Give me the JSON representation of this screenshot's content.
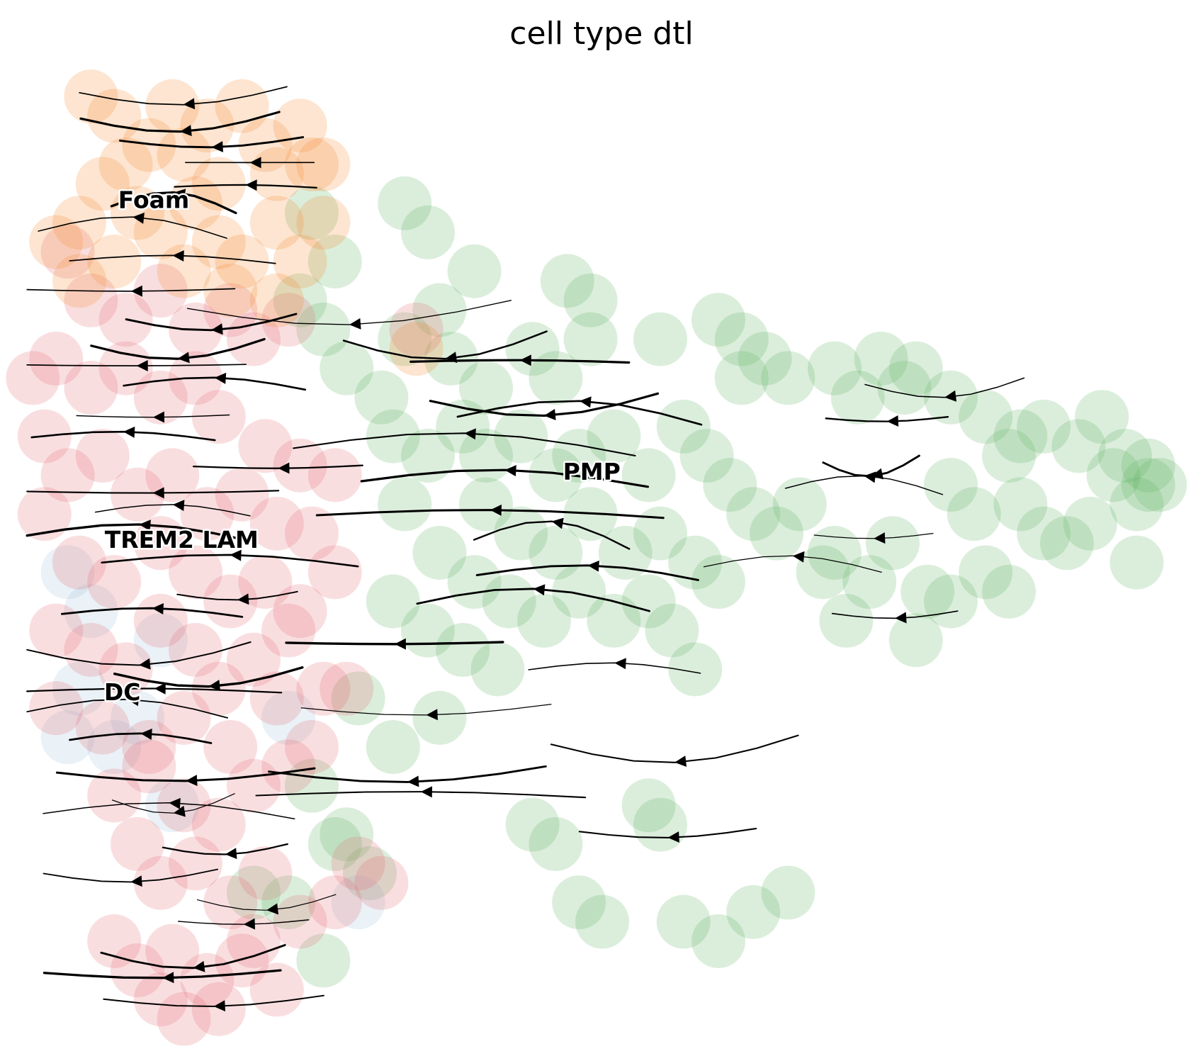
{
  "chart_data": {
    "type": "scatter",
    "title": "cell type dtl",
    "xlabel": "",
    "ylabel": "",
    "grid": false,
    "axes_visible": false,
    "legend": "on data",
    "overlay": "velocity streamlines with arrowheads",
    "xlim": [
      0,
      100
    ],
    "ylim": [
      0,
      100
    ],
    "colors": {
      "Foam": "#f58a2f",
      "TREM2 LAM": "#e36a70",
      "DC": "#9fbfdc",
      "PMP": "#5bb25e",
      "streamline": "#000000"
    },
    "cluster_labels": [
      {
        "name": "Foam",
        "x": 11.4,
        "y": 86.2
      },
      {
        "name": "TREM2 LAM",
        "x": 13.8,
        "y": 51.2
      },
      {
        "name": "DC",
        "x": 8.7,
        "y": 35.5
      },
      {
        "name": "PMP",
        "x": 49.1,
        "y": 58.2
      }
    ],
    "series": [
      {
        "name": "Foam",
        "points": [
          [
            6,
            97
          ],
          [
            8,
            95
          ],
          [
            9,
            90
          ],
          [
            11,
            92
          ],
          [
            13,
            96
          ],
          [
            14,
            91
          ],
          [
            16,
            94
          ],
          [
            17,
            88
          ],
          [
            19,
            96
          ],
          [
            21,
            92
          ],
          [
            22,
            89
          ],
          [
            24,
            94
          ],
          [
            25,
            90
          ],
          [
            5,
            84
          ],
          [
            7,
            88
          ],
          [
            10,
            85
          ],
          [
            12,
            83
          ],
          [
            15,
            86
          ],
          [
            17,
            82
          ],
          [
            19,
            80
          ],
          [
            22,
            84
          ],
          [
            24,
            80
          ],
          [
            26,
            84
          ],
          [
            3,
            82
          ],
          [
            5,
            78
          ],
          [
            8,
            80
          ],
          [
            14,
            79
          ],
          [
            18,
            77
          ],
          [
            34,
            71
          ],
          [
            26,
            90
          ],
          [
            22,
            76
          ]
        ]
      },
      {
        "name": "TREM2 LAM",
        "points": [
          [
            4,
            81
          ],
          [
            6,
            76
          ],
          [
            9,
            74
          ],
          [
            12,
            77
          ],
          [
            15,
            73
          ],
          [
            18,
            75
          ],
          [
            20,
            72
          ],
          [
            23,
            74
          ],
          [
            3,
            70
          ],
          [
            6,
            67
          ],
          [
            9,
            69
          ],
          [
            12,
            66
          ],
          [
            15,
            68
          ],
          [
            17,
            64
          ],
          [
            21,
            61
          ],
          [
            24,
            59
          ],
          [
            1,
            68
          ],
          [
            2,
            62
          ],
          [
            4,
            58
          ],
          [
            7,
            60
          ],
          [
            10,
            56
          ],
          [
            13,
            58
          ],
          [
            16,
            54
          ],
          [
            19,
            56
          ],
          [
            22,
            53
          ],
          [
            25,
            52
          ],
          [
            2,
            54
          ],
          [
            5,
            49
          ],
          [
            8,
            47
          ],
          [
            12,
            51
          ],
          [
            15,
            48
          ],
          [
            18,
            45
          ],
          [
            21,
            47
          ],
          [
            24,
            44
          ],
          [
            27,
            48
          ],
          [
            3,
            42
          ],
          [
            6,
            40
          ],
          [
            9,
            38
          ],
          [
            12,
            43
          ],
          [
            15,
            40
          ],
          [
            17,
            36
          ],
          [
            20,
            39
          ],
          [
            23,
            42
          ],
          [
            26,
            36
          ],
          [
            3,
            34
          ],
          [
            7,
            32
          ],
          [
            11,
            30
          ],
          [
            14,
            33
          ],
          [
            18,
            30
          ],
          [
            22,
            35
          ],
          [
            25,
            30
          ],
          [
            28,
            36
          ],
          [
            8,
            25
          ],
          [
            11,
            28
          ],
          [
            14,
            24
          ],
          [
            17,
            22
          ],
          [
            20,
            26
          ],
          [
            23,
            28
          ],
          [
            10,
            20
          ],
          [
            12,
            16
          ],
          [
            15,
            18
          ],
          [
            18,
            14
          ],
          [
            21,
            17
          ],
          [
            24,
            12
          ],
          [
            27,
            14
          ],
          [
            29,
            18
          ],
          [
            31,
            16
          ],
          [
            8,
            10
          ],
          [
            10,
            7
          ],
          [
            13,
            9
          ],
          [
            16,
            6
          ],
          [
            19,
            8
          ],
          [
            22,
            5
          ],
          [
            14,
            2
          ],
          [
            12,
            4
          ],
          [
            17,
            3
          ],
          [
            20,
            10
          ],
          [
            34,
            73
          ],
          [
            27,
            58
          ]
        ]
      },
      {
        "name": "DC",
        "points": [
          [
            4,
            48
          ],
          [
            6,
            44
          ],
          [
            12,
            41
          ],
          [
            5,
            36
          ],
          [
            8,
            30
          ],
          [
            10,
            33
          ],
          [
            4,
            31
          ],
          [
            13,
            24
          ],
          [
            23,
            33
          ],
          [
            29,
            14
          ]
        ]
      },
      {
        "name": "PMP",
        "points": [
          [
            25,
            85
          ],
          [
            33,
            86
          ],
          [
            35,
            83
          ],
          [
            27,
            80
          ],
          [
            24,
            76
          ],
          [
            26,
            73
          ],
          [
            39,
            79
          ],
          [
            33,
            72
          ],
          [
            36,
            75
          ],
          [
            28,
            69
          ],
          [
            31,
            66
          ],
          [
            37,
            70
          ],
          [
            40,
            67
          ],
          [
            44,
            71
          ],
          [
            46,
            68
          ],
          [
            49,
            72
          ],
          [
            47,
            78
          ],
          [
            49,
            76
          ],
          [
            55,
            72
          ],
          [
            60,
            74
          ],
          [
            62,
            72
          ],
          [
            64,
            70
          ],
          [
            66,
            68
          ],
          [
            62,
            68
          ],
          [
            70,
            69
          ],
          [
            72,
            66
          ],
          [
            74,
            70
          ],
          [
            76,
            67
          ],
          [
            77,
            69
          ],
          [
            80,
            66
          ],
          [
            83,
            64
          ],
          [
            86,
            62
          ],
          [
            88,
            63
          ],
          [
            91,
            61
          ],
          [
            93,
            64
          ],
          [
            95,
            60
          ],
          [
            97,
            59
          ],
          [
            98,
            57
          ],
          [
            96,
            55
          ],
          [
            94,
            58
          ],
          [
            92,
            53
          ],
          [
            85,
            60
          ],
          [
            80,
            57
          ],
          [
            82,
            54
          ],
          [
            86,
            55
          ],
          [
            88,
            52
          ],
          [
            90,
            51
          ],
          [
            96,
            49
          ],
          [
            97,
            57
          ],
          [
            32,
            62
          ],
          [
            35,
            60
          ],
          [
            38,
            63
          ],
          [
            40,
            60
          ],
          [
            43,
            62
          ],
          [
            46,
            58
          ],
          [
            48,
            60
          ],
          [
            51,
            62
          ],
          [
            54,
            58
          ],
          [
            57,
            63
          ],
          [
            59,
            60
          ],
          [
            61,
            57
          ],
          [
            63,
            54
          ],
          [
            65,
            52
          ],
          [
            67,
            55
          ],
          [
            70,
            50
          ],
          [
            73,
            47
          ],
          [
            75,
            51
          ],
          [
            78,
            46
          ],
          [
            80,
            45
          ],
          [
            83,
            48
          ],
          [
            85,
            46
          ],
          [
            40,
            55
          ],
          [
            43,
            52
          ],
          [
            46,
            50
          ],
          [
            49,
            54
          ],
          [
            52,
            50
          ],
          [
            55,
            52
          ],
          [
            58,
            49
          ],
          [
            60,
            47
          ],
          [
            33,
            55
          ],
          [
            36,
            50
          ],
          [
            39,
            47
          ],
          [
            42,
            45
          ],
          [
            45,
            43
          ],
          [
            48,
            46
          ],
          [
            51,
            43
          ],
          [
            54,
            45
          ],
          [
            56,
            42
          ],
          [
            32,
            45
          ],
          [
            35,
            42
          ],
          [
            38,
            40
          ],
          [
            41,
            38
          ],
          [
            36,
            33
          ],
          [
            32,
            30
          ],
          [
            29,
            35
          ],
          [
            25,
            26
          ],
          [
            27,
            20
          ],
          [
            30,
            17
          ],
          [
            54,
            24
          ],
          [
            55,
            22
          ],
          [
            58,
            38
          ],
          [
            71,
            43
          ],
          [
            69,
            48
          ],
          [
            77,
            41
          ],
          [
            48,
            14
          ],
          [
            50,
            12
          ],
          [
            57,
            12
          ],
          [
            60,
            10
          ],
          [
            63,
            13
          ],
          [
            66,
            15
          ],
          [
            20,
            15
          ],
          [
            23,
            14
          ],
          [
            26,
            8
          ],
          [
            44,
            22
          ],
          [
            46,
            20
          ],
          [
            28,
            21
          ]
        ]
      }
    ]
  }
}
